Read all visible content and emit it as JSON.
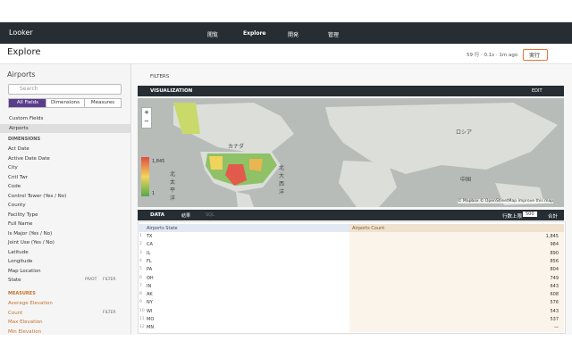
{
  "nav": {
    "logo": "Looker",
    "menu": [
      "閲覧",
      "Explore",
      "開発",
      "管理"
    ]
  },
  "header": {
    "title": "Explore",
    "status": "59 行 · 0.1s · 1m ago",
    "run": "実行"
  },
  "sidebar": {
    "title": "Airports",
    "search": "Search",
    "tabs": [
      "All Fields",
      "Dimensions",
      "Measures"
    ],
    "groups": [
      "Custom Fields",
      "Airports"
    ],
    "dimensions_label": "DIMENSIONS",
    "dimensions": [
      "Act Date",
      "Active Date Date",
      "City",
      "Cntl Twr",
      "Code",
      "Control Tower (Yes / No)",
      "County",
      "Facility Type",
      "Full Name",
      "Is Major (Yes / No)",
      "Joint Use (Yes / No)",
      "Latitude",
      "Longitude",
      "Map Location",
      "State"
    ],
    "measures_label": "MEASURES",
    "measures": [
      "Average Elevation",
      "Count",
      "Max Elevation",
      "Min Elevation"
    ],
    "pivot": "PIVOT",
    "filter": "FILTER"
  },
  "filters": "FILTERS",
  "visualization": {
    "label": "VISUALIZATION",
    "edit": "EDIT",
    "legend": [
      "1,845",
      "1"
    ],
    "map_labels": [
      "カナダ",
      "北太平洋",
      "北大西洋",
      "ロシア",
      "中国"
    ],
    "attribution": "© Mapbox © OpenStreetMap Improve this map"
  },
  "data": {
    "label": "DATA",
    "tabs": [
      "結果",
      "SQL"
    ],
    "row_limit_label": "行数上限",
    "row_limit": "500",
    "totals": "合計"
  },
  "table": {
    "columns": [
      "Airports State",
      "Airports Count"
    ],
    "rows": [
      {
        "n": "1",
        "state": "TX",
        "count": "1,845"
      },
      {
        "n": "2",
        "state": "CA",
        "count": "984"
      },
      {
        "n": "3",
        "state": "IL",
        "count": "890"
      },
      {
        "n": "4",
        "state": "FL",
        "count": "856"
      },
      {
        "n": "5",
        "state": "PA",
        "count": "804"
      },
      {
        "n": "6",
        "state": "OH",
        "count": "749"
      },
      {
        "n": "7",
        "state": "IN",
        "count": "643"
      },
      {
        "n": "8",
        "state": "AK",
        "count": "608"
      },
      {
        "n": "9",
        "state": "NY",
        "count": "576"
      },
      {
        "n": "10",
        "state": "WI",
        "count": "543"
      },
      {
        "n": "11",
        "state": "MO",
        "count": "537"
      },
      {
        "n": "12",
        "state": "MN",
        "count": "—"
      }
    ]
  }
}
